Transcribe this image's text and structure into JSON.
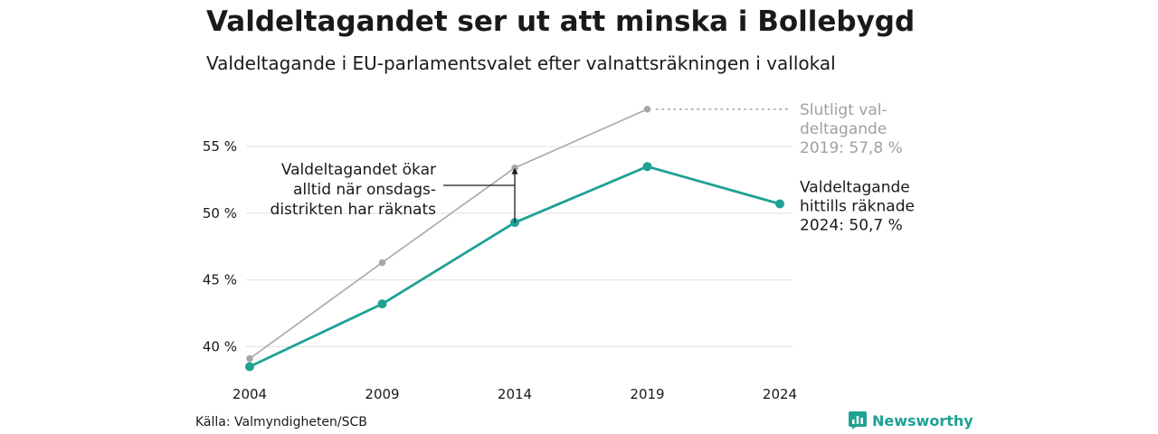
{
  "header": {
    "title": "Valdeltagandet ser ut att minska i Bollebygd",
    "subtitle": "Valdeltagande i EU-parlamentsvalet efter valnattsräkningen i vallokal"
  },
  "footer": {
    "source": "Källa: Valmyndigheten/SCB",
    "brand": "Newsworthy",
    "brand_icon": "bar-chart-logo-icon"
  },
  "colors": {
    "final_series": "#a8a8a8",
    "counted_series": "#1fa193",
    "grid": "#e3e3e3",
    "text": "#1a1a1a",
    "annotation_gray": "#a0a0a0"
  },
  "chart_data": {
    "type": "line",
    "x": [
      2004,
      2009,
      2014,
      2019,
      2024
    ],
    "ylim": [
      38.6,
      58.8
    ],
    "yticks": [
      {
        "value": 40,
        "label": "40 %"
      },
      {
        "value": 45,
        "label": "45 %"
      },
      {
        "value": 50,
        "label": "50 %"
      },
      {
        "value": 55,
        "label": "55 %"
      }
    ],
    "xtick_labels": [
      "2004",
      "2009",
      "2014",
      "2019",
      "2024"
    ],
    "grid": "horizontal",
    "series": [
      {
        "key": "final",
        "color": "#a8a8a8",
        "x": [
          2004,
          2009,
          2014,
          2019
        ],
        "values": [
          39.1,
          46.3,
          53.4,
          57.8
        ]
      },
      {
        "key": "counted",
        "color": "#1fa193",
        "x": [
          2004,
          2009,
          2014,
          2019,
          2024
        ],
        "values": [
          38.5,
          43.2,
          49.3,
          53.5,
          50.7
        ]
      }
    ],
    "annotations": {
      "final_label": [
        "Slutligt val-",
        "deltagande",
        "2019: 57,8 %"
      ],
      "counted_label": [
        "Valdeltagande",
        "hittills räknade",
        "2024: 50,7 %"
      ],
      "increase_note": [
        "Valdeltagandet ökar",
        "alltid när onsdags-",
        "distrikten har räknats"
      ]
    }
  }
}
